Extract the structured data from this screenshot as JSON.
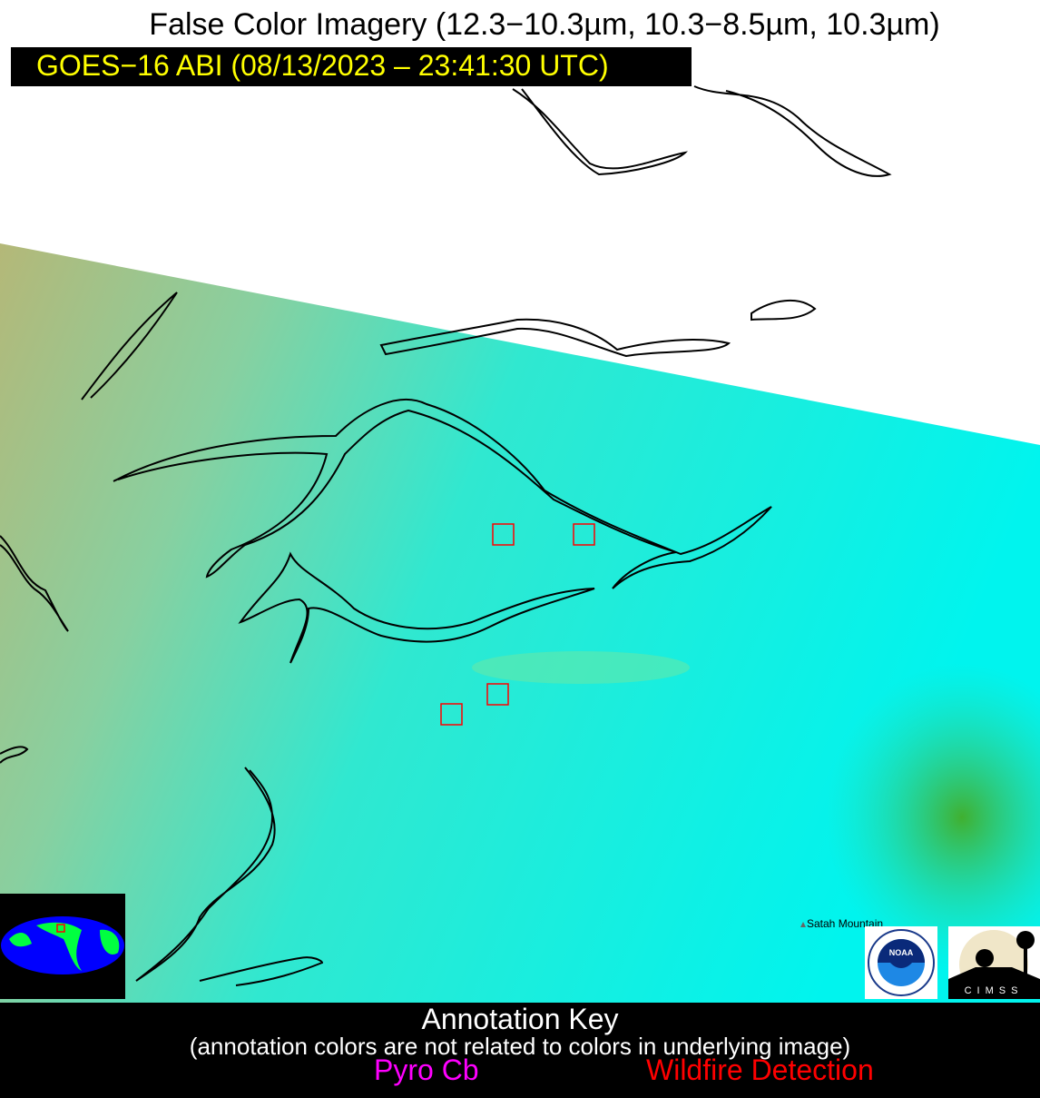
{
  "header": {
    "title": "False Color Imagery (12.3−10.3µm, 10.3−8.5µm, 10.3µm)",
    "subtitle": "GOES−16 ABI (08/13/2023 – 23:41:30 UTC)"
  },
  "map": {
    "place_label": "Satah Mountain",
    "colors": {
      "cloud": "#ffffff",
      "clear_left": "#a8c088",
      "clear_right": "#00f0e8",
      "outline": "#000000",
      "fire_box": "#ff0000"
    },
    "wildfire_detections": 4
  },
  "logos": {
    "noaa": "NOAA",
    "cimss": "CIMSS"
  },
  "key": {
    "title": "Annotation Key",
    "note": "(annotation colors are not related to colors in underlying image)",
    "pyro_cb": "Pyro Cb",
    "wildfire": "Wildfire Detection",
    "pyro_color": "#ff00ff",
    "wildfire_color": "#ff0000"
  }
}
